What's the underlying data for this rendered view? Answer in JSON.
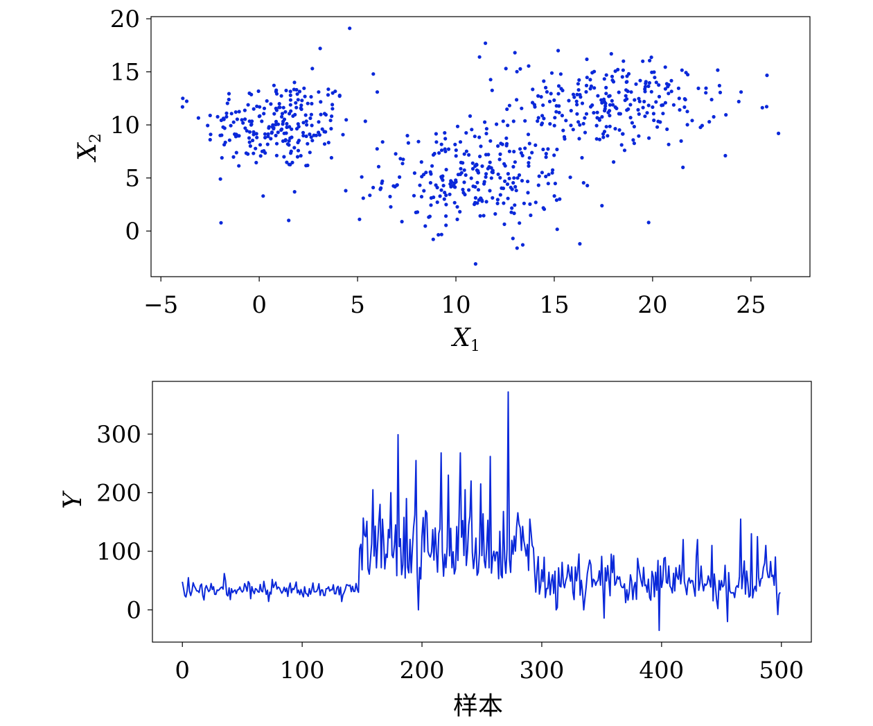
{
  "chart_data": [
    {
      "type": "scatter",
      "title": "",
      "xlabel_main": "X",
      "xlabel_sub": "1",
      "ylabel_main": "X",
      "ylabel_sub": "2",
      "xlim": [
        -5.5,
        28
      ],
      "ylim": [
        -4.3,
        20.2
      ],
      "xticks": [
        -5,
        0,
        5,
        10,
        15,
        20,
        25
      ],
      "xtick_labels": [
        "−5",
        "0",
        "5",
        "10",
        "15",
        "20",
        "25"
      ],
      "yticks": [
        0,
        5,
        10,
        15,
        20
      ],
      "ytick_labels": [
        "0",
        "5",
        "10",
        "15",
        "20"
      ],
      "grid": false,
      "color": "#0a28d9",
      "clusters": [
        {
          "center": [
            1,
            10
          ],
          "spread": [
            1.9,
            2.2
          ],
          "count": 230
        },
        {
          "center": [
            11,
            5
          ],
          "spread": [
            2.3,
            2.3
          ],
          "count": 260
        },
        {
          "center": [
            18,
            12
          ],
          "spread": [
            2.6,
            2.0
          ],
          "count": 240
        }
      ],
      "outliers": [
        [
          -3.9,
          11.7
        ],
        [
          4.6,
          19.1
        ],
        [
          3.1,
          17.2
        ],
        [
          11.5,
          17.7
        ],
        [
          11.2,
          16.4
        ],
        [
          1.5,
          1.0
        ],
        [
          5.1,
          1.1
        ],
        [
          0.2,
          3.3
        ],
        [
          1.8,
          3.7
        ],
        [
          4.4,
          3.8
        ],
        [
          11.0,
          -3.1
        ],
        [
          13.4,
          -1.3
        ],
        [
          12.9,
          -0.7
        ],
        [
          16.3,
          -1.2
        ],
        [
          19.8,
          0.8
        ],
        [
          26.4,
          9.2
        ],
        [
          23.7,
          7.1
        ],
        [
          24.5,
          13.1
        ],
        [
          23.4,
          13.7
        ],
        [
          19.5,
          16.0
        ],
        [
          13.0,
          16.8
        ],
        [
          15.2,
          17.0
        ],
        [
          17.9,
          16.7
        ],
        [
          5.8,
          14.8
        ],
        [
          6.0,
          13.1
        ]
      ]
    },
    {
      "type": "line",
      "title": "",
      "xlabel": "样本",
      "ylabel": "Y",
      "xlim": [
        -25,
        525
      ],
      "ylim": [
        -55,
        390
      ],
      "xticks": [
        0,
        100,
        200,
        300,
        400,
        500
      ],
      "xtick_labels": [
        "0",
        "100",
        "200",
        "300",
        "400",
        "500"
      ],
      "yticks": [
        0,
        100,
        200,
        300
      ],
      "ytick_labels": [
        "0",
        "100",
        "200",
        "300"
      ],
      "grid": false,
      "color": "#0a28d9",
      "n": 500,
      "segments": [
        {
          "start": 0,
          "end": 147,
          "mean": 34,
          "sd": 7
        },
        {
          "start": 148,
          "end": 292,
          "mean": 105,
          "sd": 45
        },
        {
          "start": 293,
          "end": 499,
          "mean": 48,
          "sd": 22
        }
      ],
      "peaks": [
        [
          0,
          48
        ],
        [
          3,
          22
        ],
        [
          5,
          55
        ],
        [
          35,
          62
        ],
        [
          75,
          52
        ],
        [
          147,
          30
        ],
        [
          149,
          112
        ],
        [
          152,
          128
        ],
        [
          155,
          70
        ],
        [
          159,
          205
        ],
        [
          165,
          180
        ],
        [
          170,
          95
        ],
        [
          174,
          200
        ],
        [
          178,
          145
        ],
        [
          180,
          299
        ],
        [
          183,
          60
        ],
        [
          187,
          190
        ],
        [
          193,
          140
        ],
        [
          195,
          255
        ],
        [
          197,
          0
        ],
        [
          204,
          165
        ],
        [
          210,
          85
        ],
        [
          216,
          268
        ],
        [
          219,
          95
        ],
        [
          222,
          230
        ],
        [
          228,
          70
        ],
        [
          232,
          268
        ],
        [
          236,
          205
        ],
        [
          241,
          220
        ],
        [
          244,
          90
        ],
        [
          249,
          215
        ],
        [
          257,
          262
        ],
        [
          260,
          100
        ],
        [
          268,
          168
        ],
        [
          272,
          372
        ],
        [
          276,
          95
        ],
        [
          282,
          140
        ],
        [
          290,
          155
        ],
        [
          292,
          110
        ],
        [
          296,
          65
        ],
        [
          312,
          0
        ],
        [
          335,
          0
        ],
        [
          340,
          85
        ],
        [
          352,
          -14
        ],
        [
          358,
          95
        ],
        [
          380,
          88
        ],
        [
          398,
          -35
        ],
        [
          418,
          120
        ],
        [
          430,
          120
        ],
        [
          442,
          110
        ],
        [
          455,
          -20
        ],
        [
          466,
          155
        ],
        [
          475,
          130
        ],
        [
          480,
          125
        ],
        [
          487,
          110
        ],
        [
          497,
          -8
        ],
        [
          499,
          30
        ]
      ]
    }
  ]
}
